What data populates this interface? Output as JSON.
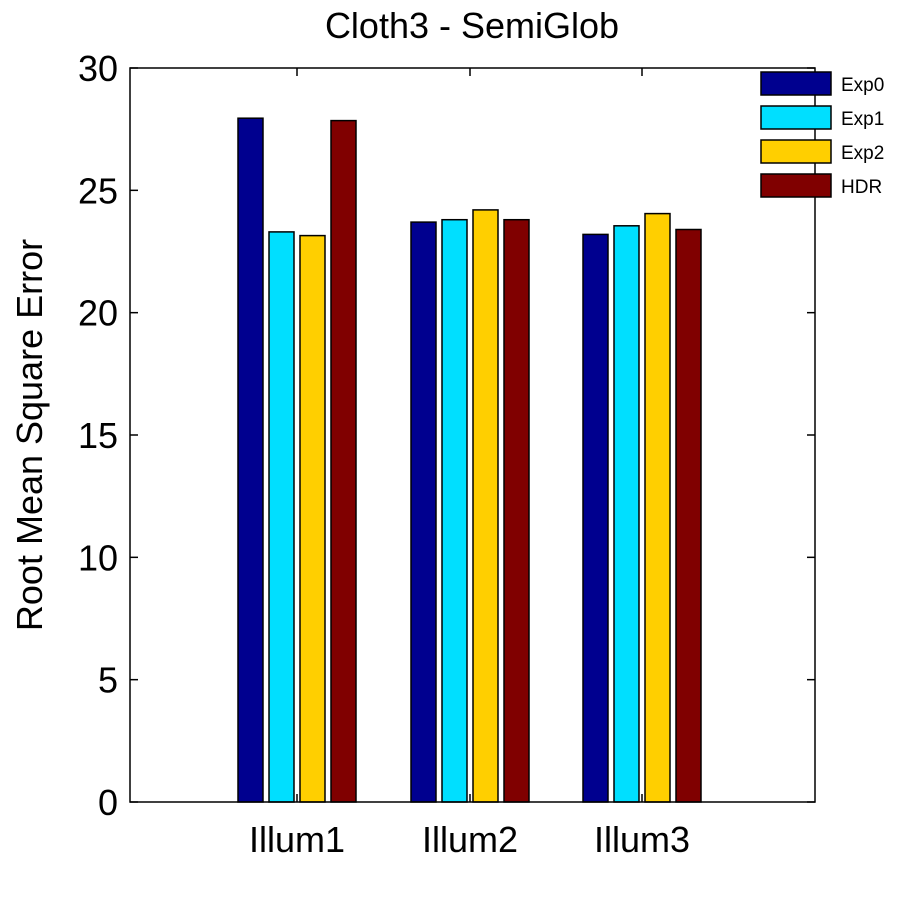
{
  "chart_data": {
    "type": "bar",
    "title": "Cloth3 - SemiGlob",
    "xlabel": "",
    "ylabel": "Root Mean Square Error",
    "categories": [
      "Illum1",
      "Illum2",
      "Illum3"
    ],
    "series": [
      {
        "name": "Exp0",
        "color": "#00008F",
        "values": [
          27.95,
          23.7,
          23.2
        ]
      },
      {
        "name": "Exp1",
        "color": "#00DFFF",
        "values": [
          23.3,
          23.8,
          23.55
        ]
      },
      {
        "name": "Exp2",
        "color": "#FFCF00",
        "values": [
          23.15,
          24.2,
          24.05
        ]
      },
      {
        "name": "HDR",
        "color": "#800000",
        "values": [
          27.85,
          23.8,
          23.4
        ]
      }
    ],
    "ylim": [
      0,
      30
    ],
    "yticks": [
      0,
      5,
      10,
      15,
      20,
      25,
      30
    ],
    "grid": false,
    "legend_position": "top-right"
  }
}
